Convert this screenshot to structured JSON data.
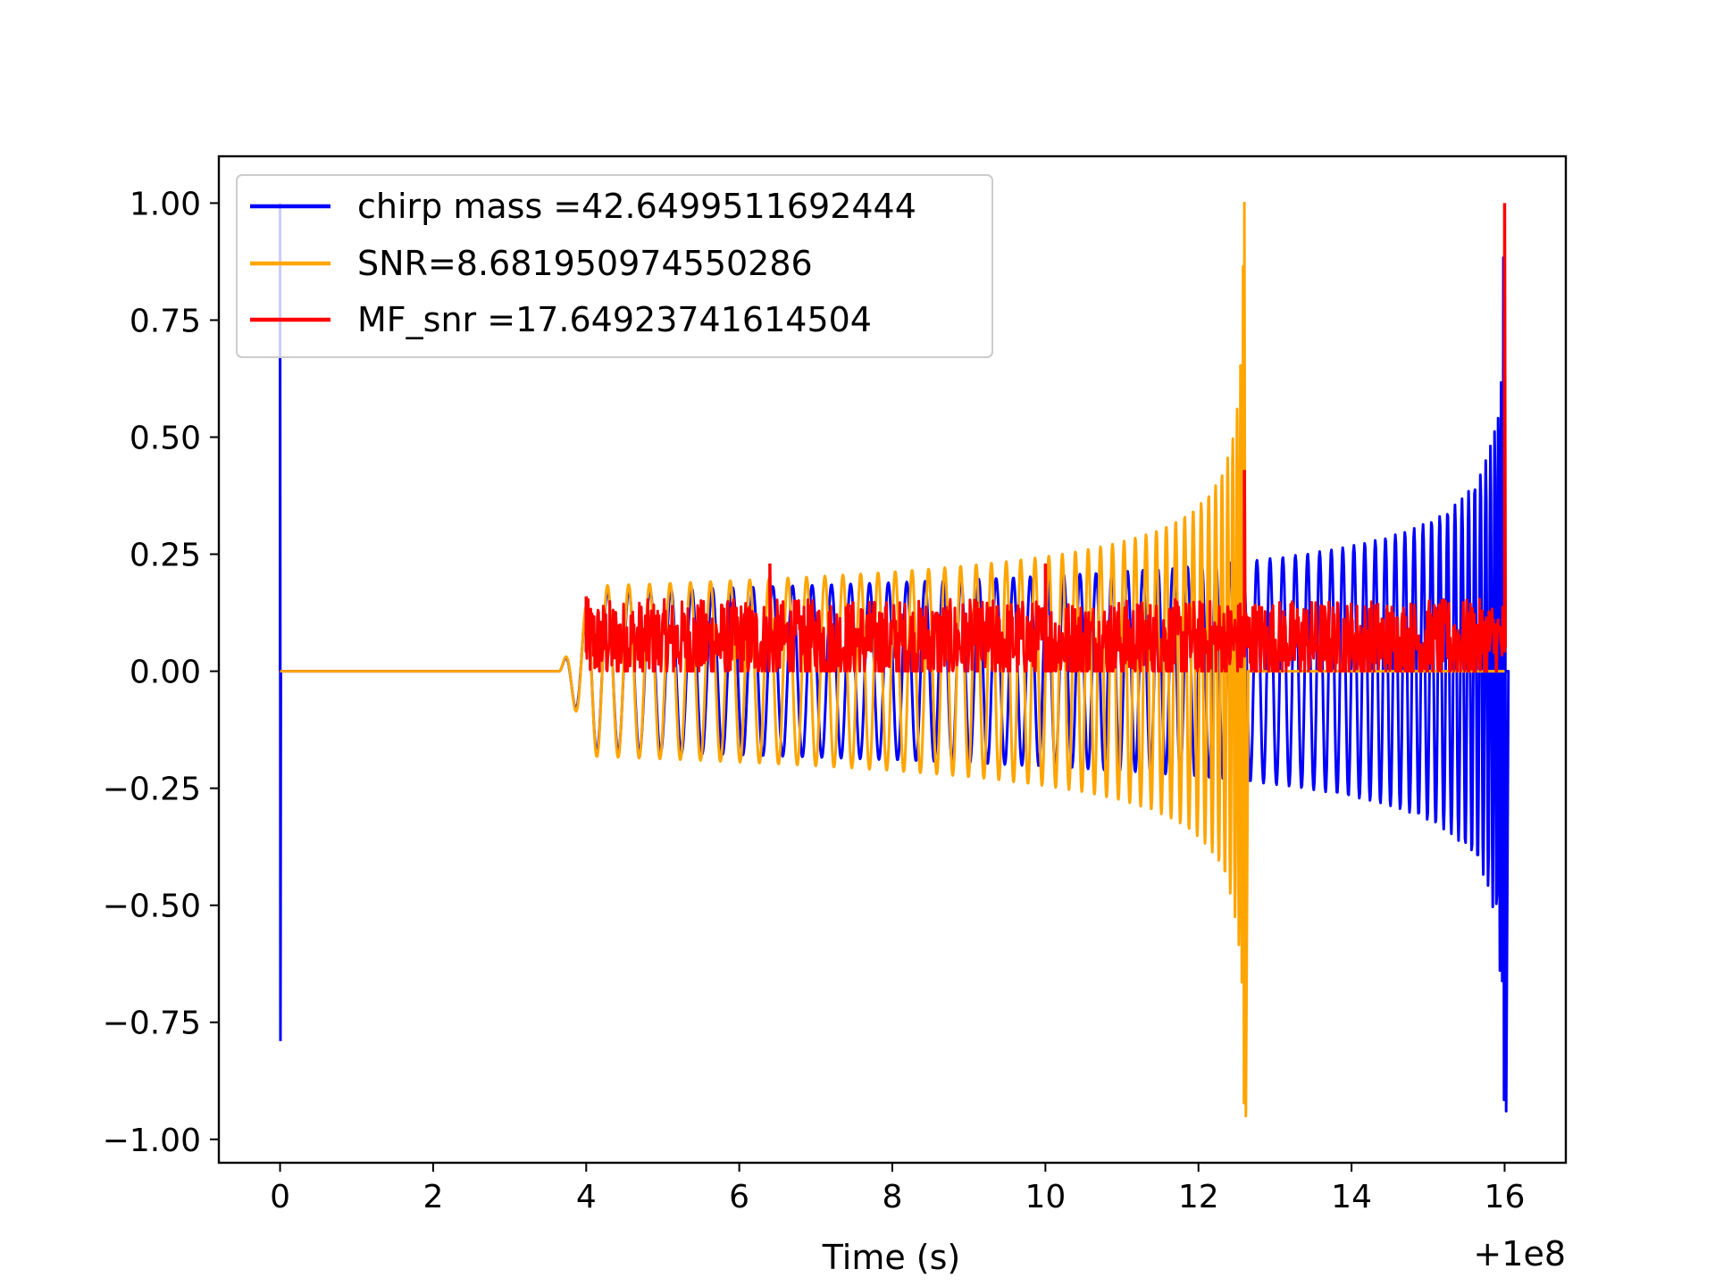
{
  "chart_data": {
    "type": "line",
    "title": "",
    "xlabel": "Time (s)",
    "ylabel": "",
    "x_offset_label": "+1e8",
    "xlim": [
      -0.8,
      16.8
    ],
    "ylim": [
      -1.05,
      1.1
    ],
    "xticks": [
      0,
      2,
      4,
      6,
      8,
      10,
      12,
      14,
      16
    ],
    "xtick_labels": [
      "0",
      "2",
      "4",
      "6",
      "8",
      "10",
      "12",
      "14",
      "16"
    ],
    "yticks": [
      1.0,
      0.75,
      0.5,
      0.25,
      0.0,
      -0.25,
      -0.5,
      -0.75,
      -1.0
    ],
    "ytick_labels": [
      "1.00",
      "0.75",
      "0.50",
      "0.25",
      "0.00",
      "−0.25",
      "−0.50",
      "−0.75",
      "−1.00"
    ],
    "grid": false,
    "legend_position": "top-left",
    "series": [
      {
        "name": "chirp mass =42.6499511692444",
        "color": "#0000ff",
        "kind": "chirp",
        "start_spike": {
          "x": 0.0,
          "max": 1.0,
          "min": -0.79
        },
        "onset": 3.65,
        "merger": 16.0,
        "envelope_start": 0.17,
        "merger_peak": 0.84,
        "merger_trough": -0.94
      },
      {
        "name": "SNR=8.681950974550286",
        "color": "#ffa500",
        "kind": "chirp",
        "onset": 3.65,
        "merger": 12.6,
        "envelope_start": 0.18,
        "merger_peak": 1.0,
        "merger_trough": -0.95
      },
      {
        "name": "MF_snr =17.64923741614504",
        "color": "#ff0000",
        "kind": "noise",
        "start": 4.0,
        "end": 16.0,
        "baseline": 0.0,
        "typical_max": 0.14,
        "spikes": [
          {
            "x": 4.0,
            "y": 0.16
          },
          {
            "x": 6.4,
            "y": 0.23
          },
          {
            "x": 10.0,
            "y": 0.23
          },
          {
            "x": 12.6,
            "y": 0.43
          },
          {
            "x": 16.0,
            "y": 1.0
          }
        ]
      }
    ]
  }
}
